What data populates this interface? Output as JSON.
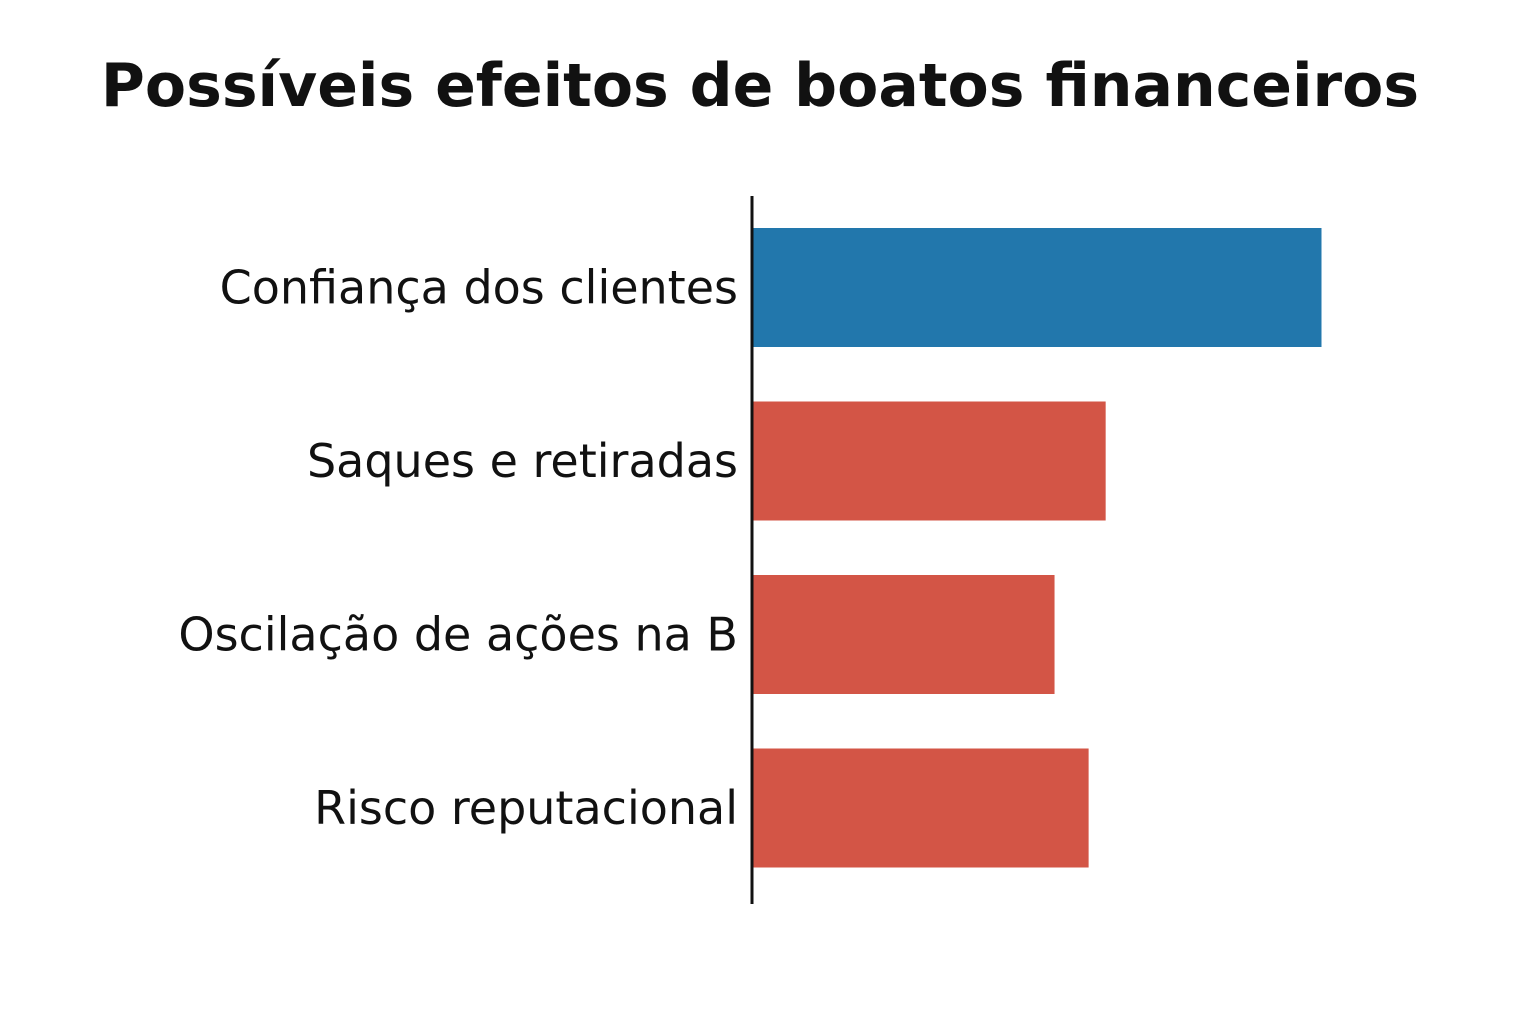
{
  "chart_data": {
    "type": "bar",
    "orientation": "horizontal",
    "title": "Possíveis efeitos de boatos financeiros",
    "xlabel": "",
    "ylabel": "",
    "categories": [
      "Confiança dos clientes",
      "Saques e retiradas",
      "Oscilação de ações na B",
      "Risco reputacional"
    ],
    "values": [
      100,
      62,
      53,
      59
    ],
    "bar_colors": [
      "#2277ac",
      "#d35546",
      "#d35546",
      "#d35546"
    ],
    "xlim": [
      0,
      100
    ],
    "grid": false,
    "legend": "none",
    "x_tick_labels": false
  }
}
